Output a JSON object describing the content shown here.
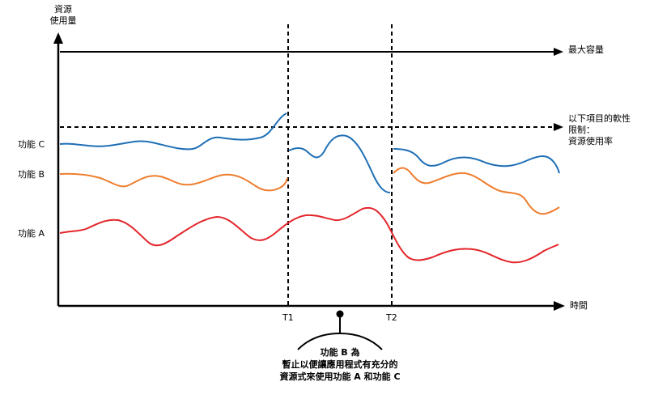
{
  "axis": {
    "y_title_line1": "資源",
    "y_title_line2": "使用量",
    "x_title": "時間"
  },
  "markers": {
    "t1": "T1",
    "t2": "T2"
  },
  "reference_lines": {
    "max_capacity": "最大容量",
    "soft_limit_line1": "以下項目的軟性",
    "soft_limit_line2": "限制：",
    "soft_limit_line3": "資源使用率"
  },
  "features": {
    "c": "功能 C",
    "b": "功能 B",
    "a": "功能 A"
  },
  "callout": {
    "line1": "功能 B 為",
    "line2": "暫止以便讓應用程式有充分的",
    "line3": "資源式來使用功能 A 和功能 C"
  },
  "colors": {
    "feature_c": "#1f6fb5",
    "feature_b": "#ee7d2e",
    "feature_a": "#e3262b",
    "axis": "#000000"
  }
}
